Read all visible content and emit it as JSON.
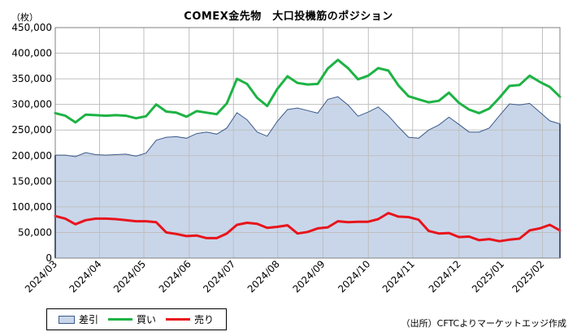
{
  "chart_data": {
    "type": "area",
    "title": "COMEX金先物　大口投機筋のポジション",
    "unit_label": "（枚）",
    "source": "（出所）CFTCよりマーケットエッジ作成",
    "ylim": [
      0,
      450000
    ],
    "yticks": [
      "0",
      "50,000",
      "100,000",
      "150,000",
      "200,000",
      "250,000",
      "300,000",
      "350,000",
      "400,000",
      "450,000"
    ],
    "xlim": [
      0,
      49
    ],
    "xtick_positions": [
      0,
      4.3,
      8.6,
      13,
      17.3,
      21.6,
      26,
      30.4,
      34.7,
      39.2,
      43.4,
      47.3
    ],
    "xticks": [
      "2024/03",
      "2024/04",
      "2024/05",
      "2024/06",
      "2024/07",
      "2024/08",
      "2024/09",
      "2024/10",
      "2024/11",
      "2024/12",
      "2025/01",
      "2025/02"
    ],
    "grid": true,
    "legend_position": "bottom-left",
    "colors": {
      "net": "#c9d6ea",
      "net_edge": "#3b5a8a",
      "long": "#1db344",
      "short": "#e8141b",
      "grid": "#bfbfbf"
    },
    "series": [
      {
        "name": "差引",
        "type": "area",
        "values": [
          201000,
          201000,
          198000,
          206000,
          202000,
          201000,
          202000,
          203000,
          199000,
          205000,
          230000,
          236000,
          237000,
          234000,
          243000,
          246000,
          242000,
          254000,
          284000,
          270000,
          246000,
          238000,
          267000,
          290000,
          293000,
          288000,
          283000,
          310000,
          315000,
          299000,
          277000,
          285000,
          295000,
          278000,
          256000,
          236000,
          234000,
          250000,
          260000,
          275000,
          261000,
          246000,
          246000,
          254000,
          278000,
          301000,
          299000,
          302000,
          285000,
          268000,
          262000
        ]
      },
      {
        "name": "買い",
        "type": "line",
        "values": [
          283000,
          278000,
          265000,
          280000,
          279000,
          278000,
          279000,
          278000,
          273000,
          277000,
          300000,
          286000,
          284000,
          276000,
          287000,
          284000,
          281000,
          302000,
          350000,
          340000,
          313000,
          297000,
          330000,
          355000,
          342000,
          339000,
          340000,
          370000,
          387000,
          371000,
          349000,
          356000,
          371000,
          366000,
          337000,
          316000,
          310000,
          304000,
          307000,
          323000,
          303000,
          290000,
          283000,
          292000,
          313000,
          336000,
          338000,
          356000,
          344000,
          334000,
          315000
        ]
      },
      {
        "name": "売り",
        "type": "line",
        "values": [
          82000,
          77000,
          66000,
          74000,
          77000,
          77000,
          76000,
          74000,
          72000,
          72000,
          70000,
          50000,
          47000,
          43000,
          44000,
          39000,
          39000,
          48000,
          65000,
          69000,
          67000,
          59000,
          61000,
          64000,
          48000,
          51000,
          58000,
          60000,
          72000,
          70000,
          71000,
          71000,
          76000,
          88000,
          81000,
          80000,
          75000,
          53000,
          48000,
          49000,
          41000,
          42000,
          35000,
          37000,
          33000,
          36000,
          38000,
          54000,
          58000,
          65000,
          54000
        ]
      }
    ]
  }
}
